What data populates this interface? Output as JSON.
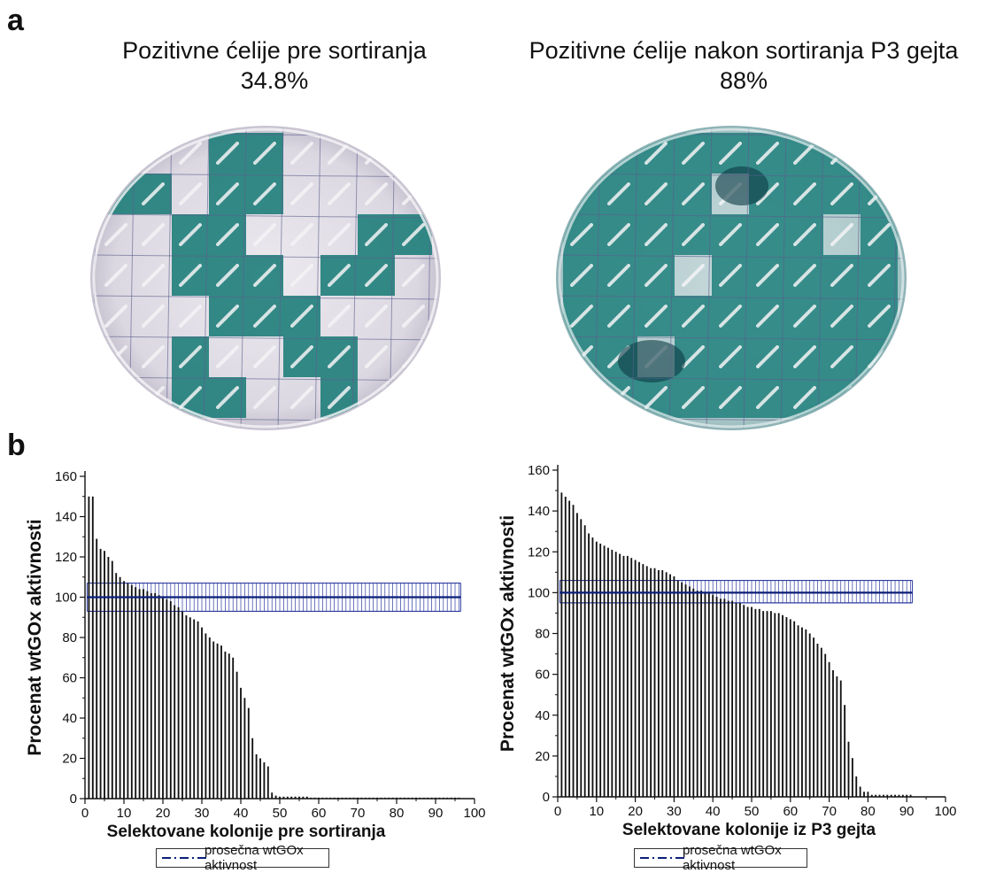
{
  "panel_a_label": "a",
  "panel_b_label": "b",
  "plates": [
    {
      "title_line1": "Pozitivne ćelije pre sortiranja",
      "title_line2": "34.8%"
    },
    {
      "title_line1": "Pozitivne ćelije nakon sortiranja P3 gejta",
      "title_line2": "88%"
    }
  ],
  "colors": {
    "bars": "#111111",
    "mean_line": "#0b1f7a",
    "error_band": "#2e3ba0",
    "plate_green": "#1f7a78",
    "plate_background": "#e6e4ea"
  },
  "chart_data": [
    {
      "type": "bar",
      "title": "",
      "xlabel": "Selektovane kolonije pre sortiranja",
      "ylabel": "Procenat wtGOx aktivnosti",
      "xlim": [
        0,
        100
      ],
      "ylim": [
        0,
        160
      ],
      "x_ticks": [
        "0",
        "10",
        "20",
        "30",
        "40",
        "50",
        "60",
        "70",
        "80",
        "90",
        "100"
      ],
      "y_ticks": [
        "0",
        "20",
        "40",
        "60",
        "80",
        "100",
        "120",
        "140",
        "160"
      ],
      "x": [
        1,
        2,
        3,
        4,
        5,
        6,
        7,
        8,
        9,
        10,
        11,
        12,
        13,
        14,
        15,
        16,
        17,
        18,
        19,
        20,
        21,
        22,
        23,
        24,
        25,
        26,
        27,
        28,
        29,
        30,
        31,
        32,
        33,
        34,
        35,
        36,
        37,
        38,
        39,
        40,
        41,
        42,
        43,
        44,
        45,
        46,
        47,
        48,
        49,
        50,
        51,
        52,
        53,
        54,
        55,
        56,
        57,
        58,
        59,
        60,
        61,
        62,
        63,
        64,
        65,
        66,
        67,
        68,
        69,
        70,
        71,
        72,
        73,
        74,
        75,
        76,
        77,
        78,
        79,
        80,
        81,
        82,
        83,
        84,
        85,
        86,
        87,
        88,
        89,
        90,
        91,
        92,
        93,
        94,
        95,
        96
      ],
      "values": [
        150,
        150,
        129,
        124,
        123,
        120,
        118,
        112,
        110,
        108,
        107,
        106,
        105,
        104,
        104,
        103,
        102,
        102,
        101,
        100,
        99,
        98,
        96,
        95,
        93,
        91,
        90,
        89,
        88,
        85,
        82,
        80,
        78,
        77,
        76,
        73,
        72,
        70,
        63,
        55,
        50,
        45,
        30,
        22,
        20,
        18,
        16,
        3,
        1.5,
        1,
        1,
        1,
        1,
        1,
        1,
        1,
        1,
        0.5,
        0.5,
        0.5,
        0.5,
        0.5,
        0.5,
        0.5,
        0.5,
        0.5,
        0.5,
        0.5,
        0.5,
        0.5,
        0.5,
        0.5,
        0.5,
        0.5,
        0.5,
        0.5,
        0.5,
        0.5,
        0.5,
        0.5,
        0.5,
        0.5,
        0.5,
        0.5,
        0.5,
        0.5,
        0.5,
        0.5,
        0.5,
        0.5,
        0.5,
        0.5,
        0.5,
        0.5,
        0.5,
        0.5
      ],
      "mean_line": {
        "value": 100,
        "error_low": 93,
        "error_high": 107,
        "x_range": [
          1,
          96
        ]
      },
      "legend": {
        "label": "prosečna wtGOx aktivnost",
        "style": "dash-dot",
        "position": "bottom-center"
      }
    },
    {
      "type": "bar",
      "title": "",
      "xlabel": "Selektovane kolonije iz P3 gejta",
      "ylabel": "Procenat wtGOx aktivnosti",
      "xlim": [
        0,
        100
      ],
      "ylim": [
        0,
        160
      ],
      "x_ticks": [
        "0",
        "10",
        "20",
        "30",
        "40",
        "50",
        "60",
        "70",
        "80",
        "90",
        "100"
      ],
      "y_ticks": [
        "0",
        "20",
        "40",
        "60",
        "80",
        "100",
        "120",
        "140",
        "160"
      ],
      "x": [
        1,
        2,
        3,
        4,
        5,
        6,
        7,
        8,
        9,
        10,
        11,
        12,
        13,
        14,
        15,
        16,
        17,
        18,
        19,
        20,
        21,
        22,
        23,
        24,
        25,
        26,
        27,
        28,
        29,
        30,
        31,
        32,
        33,
        34,
        35,
        36,
        37,
        38,
        39,
        40,
        41,
        42,
        43,
        44,
        45,
        46,
        47,
        48,
        49,
        50,
        51,
        52,
        53,
        54,
        55,
        56,
        57,
        58,
        59,
        60,
        61,
        62,
        63,
        64,
        65,
        66,
        67,
        68,
        69,
        70,
        71,
        72,
        73,
        74,
        75,
        76,
        77,
        78,
        79,
        80,
        81,
        82,
        83,
        84,
        85,
        86,
        87,
        88,
        89,
        90,
        91
      ],
      "values": [
        149,
        147,
        145,
        143,
        139,
        136,
        133,
        129,
        127,
        125,
        124,
        123,
        122,
        121,
        120,
        119,
        118,
        118,
        117,
        116,
        115,
        114,
        113,
        112,
        112,
        111,
        111,
        110,
        109,
        108,
        106,
        105,
        104,
        103,
        102,
        101,
        101,
        100,
        100,
        99,
        98,
        97,
        97,
        96,
        96,
        95,
        95,
        94,
        93,
        93,
        92,
        92,
        91,
        91,
        91,
        90,
        90,
        89,
        88,
        87,
        86,
        84,
        83,
        82,
        80,
        78,
        75,
        73,
        70,
        66,
        62,
        59,
        57,
        45,
        27,
        19,
        10,
        5,
        2.5,
        2.5,
        1,
        1,
        1,
        1,
        1,
        1,
        1,
        1,
        1,
        1,
        1
      ],
      "mean_line": {
        "value": 100,
        "error_low": 95,
        "error_high": 106,
        "x_range": [
          1,
          91
        ]
      },
      "legend": {
        "label": "prosečna wtGOx aktivnost",
        "style": "dash-dot",
        "position": "bottom-center"
      }
    }
  ]
}
